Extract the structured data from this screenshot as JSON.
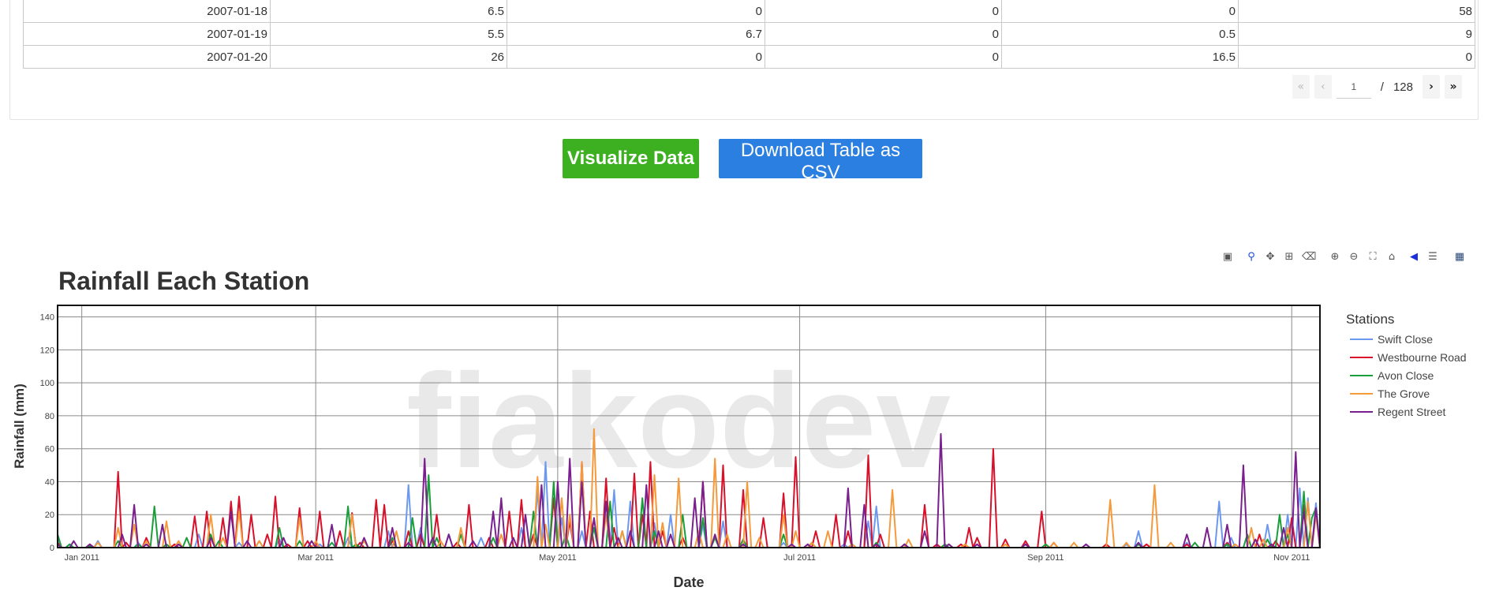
{
  "table": {
    "rows": [
      [
        "2007-01-18",
        "6.5",
        "0",
        "0",
        "0",
        "58"
      ],
      [
        "2007-01-19",
        "5.5",
        "6.7",
        "0",
        "0.5",
        "9"
      ],
      [
        "2007-01-20",
        "26",
        "0",
        "0",
        "16.5",
        "0"
      ]
    ]
  },
  "pager": {
    "first_icon": "double-chevron-left",
    "prev_icon": "chevron-left",
    "current_page": "1",
    "separator": "/",
    "total_pages": "128",
    "next_icon": "chevron-right",
    "last_icon": "double-chevron-right"
  },
  "buttons": {
    "visualize_label": "Visualize Data",
    "download_label": "Download Table as CSV",
    "visualize_color": "#3cb020",
    "download_color": "#2b7fe0"
  },
  "toolbar": {
    "icons": [
      "camera-icon",
      "zoom-icon",
      "pan-icon",
      "box-select-icon",
      "lasso-clear-icon",
      "zoom-in-icon",
      "zoom-out-icon",
      "autoscale-icon",
      "reset-axes-icon",
      "spike-lines-icon",
      "compare-hover-icon",
      "bar-chart-icon"
    ]
  },
  "chart_data": {
    "type": "line",
    "title": "Rainfall Each Station",
    "xlabel": "Date",
    "ylabel": "Rainfall (mm)",
    "watermark": "fiakodev",
    "ylim": [
      0,
      147
    ],
    "yticks": [
      0,
      20,
      40,
      60,
      80,
      100,
      120,
      140
    ],
    "xrange_days": [
      0,
      313
    ],
    "xticks": [
      {
        "label": "Jan 2011",
        "day": 6
      },
      {
        "label": "Mar 2011",
        "day": 64
      },
      {
        "label": "May 2011",
        "day": 124
      },
      {
        "label": "Jul 2011",
        "day": 184
      },
      {
        "label": "Sep 2011",
        "day": 245
      },
      {
        "label": "Nov 2011",
        "day": 306
      }
    ],
    "legend_title": "Stations",
    "legend_position": "right",
    "series": [
      {
        "name": "Swift Close",
        "color": "#6d98f0",
        "points": [
          [
            0,
            6
          ],
          [
            3,
            2
          ],
          [
            10,
            4
          ],
          [
            20,
            3
          ],
          [
            35,
            8
          ],
          [
            45,
            3
          ],
          [
            55,
            5
          ],
          [
            65,
            2
          ],
          [
            72,
            6
          ],
          [
            82,
            10
          ],
          [
            87,
            38
          ],
          [
            90,
            12
          ],
          [
            97,
            8
          ],
          [
            105,
            6
          ],
          [
            115,
            12
          ],
          [
            119,
            35
          ],
          [
            121,
            52
          ],
          [
            125,
            18
          ],
          [
            130,
            10
          ],
          [
            138,
            35
          ],
          [
            142,
            28
          ],
          [
            148,
            15
          ],
          [
            152,
            20
          ],
          [
            160,
            14
          ],
          [
            165,
            16
          ],
          [
            180,
            3
          ],
          [
            195,
            2
          ],
          [
            201,
            16
          ],
          [
            203,
            25
          ],
          [
            210,
            2
          ],
          [
            240,
            2
          ],
          [
            265,
            2
          ],
          [
            268,
            10
          ],
          [
            280,
            3
          ],
          [
            288,
            28
          ],
          [
            291,
            6
          ],
          [
            300,
            14
          ],
          [
            305,
            20
          ],
          [
            308,
            36
          ],
          [
            310,
            30
          ],
          [
            312,
            27
          ]
        ]
      },
      {
        "name": "Westbourne Road",
        "color": "#d8102a",
        "points": [
          [
            0,
            3
          ],
          [
            8,
            2
          ],
          [
            15,
            46
          ],
          [
            17,
            3
          ],
          [
            22,
            6
          ],
          [
            29,
            2
          ],
          [
            34,
            19
          ],
          [
            37,
            22
          ],
          [
            41,
            18
          ],
          [
            43,
            28
          ],
          [
            45,
            31
          ],
          [
            48,
            20
          ],
          [
            52,
            8
          ],
          [
            54,
            31
          ],
          [
            57,
            2
          ],
          [
            60,
            24
          ],
          [
            62,
            4
          ],
          [
            65,
            22
          ],
          [
            70,
            10
          ],
          [
            73,
            21
          ],
          [
            75,
            3
          ],
          [
            79,
            29
          ],
          [
            81,
            26
          ],
          [
            83,
            4
          ],
          [
            87,
            10
          ],
          [
            90,
            8
          ],
          [
            94,
            20
          ],
          [
            99,
            3
          ],
          [
            102,
            26
          ],
          [
            107,
            6
          ],
          [
            112,
            22
          ],
          [
            115,
            29
          ],
          [
            118,
            8
          ],
          [
            123,
            30
          ],
          [
            127,
            16
          ],
          [
            130,
            52
          ],
          [
            132,
            22
          ],
          [
            136,
            42
          ],
          [
            138,
            12
          ],
          [
            143,
            45
          ],
          [
            145,
            20
          ],
          [
            147,
            52
          ],
          [
            150,
            10
          ],
          [
            155,
            6
          ],
          [
            160,
            40
          ],
          [
            165,
            50
          ],
          [
            170,
            35
          ],
          [
            175,
            18
          ],
          [
            180,
            33
          ],
          [
            183,
            55
          ],
          [
            188,
            10
          ],
          [
            193,
            20
          ],
          [
            196,
            10
          ],
          [
            201,
            56
          ],
          [
            204,
            8
          ],
          [
            210,
            2
          ],
          [
            215,
            26
          ],
          [
            218,
            2
          ],
          [
            224,
            2
          ],
          [
            226,
            12
          ],
          [
            228,
            6
          ],
          [
            232,
            60
          ],
          [
            235,
            5
          ],
          [
            240,
            4
          ],
          [
            244,
            22
          ],
          [
            247,
            3
          ],
          [
            260,
            2
          ],
          [
            270,
            2
          ],
          [
            280,
            2
          ],
          [
            290,
            3
          ],
          [
            298,
            8
          ],
          [
            302,
            4
          ],
          [
            306,
            18
          ],
          [
            309,
            26
          ],
          [
            312,
            22
          ]
        ]
      },
      {
        "name": "Avon Close",
        "color": "#1a9e3a",
        "points": [
          [
            0,
            8
          ],
          [
            3,
            2
          ],
          [
            8,
            1
          ],
          [
            15,
            4
          ],
          [
            20,
            2
          ],
          [
            24,
            25
          ],
          [
            27,
            2
          ],
          [
            32,
            6
          ],
          [
            38,
            8
          ],
          [
            40,
            4
          ],
          [
            50,
            4
          ],
          [
            55,
            12
          ],
          [
            60,
            4
          ],
          [
            68,
            3
          ],
          [
            72,
            25
          ],
          [
            74,
            2
          ],
          [
            83,
            6
          ],
          [
            88,
            18
          ],
          [
            92,
            44
          ],
          [
            94,
            6
          ],
          [
            100,
            8
          ],
          [
            108,
            6
          ],
          [
            118,
            22
          ],
          [
            123,
            40
          ],
          [
            126,
            8
          ],
          [
            133,
            12
          ],
          [
            137,
            28
          ],
          [
            140,
            10
          ],
          [
            145,
            30
          ],
          [
            148,
            10
          ],
          [
            155,
            20
          ],
          [
            160,
            18
          ],
          [
            163,
            6
          ],
          [
            170,
            5
          ],
          [
            180,
            8
          ],
          [
            187,
            3
          ],
          [
            197,
            2
          ],
          [
            203,
            3
          ],
          [
            220,
            2
          ],
          [
            245,
            2
          ],
          [
            268,
            2
          ],
          [
            282,
            3
          ],
          [
            290,
            2
          ],
          [
            295,
            8
          ],
          [
            300,
            5
          ],
          [
            303,
            20
          ],
          [
            305,
            8
          ],
          [
            309,
            34
          ],
          [
            311,
            18
          ],
          [
            312,
            24
          ]
        ]
      },
      {
        "name": "The Grove",
        "color": "#f59a3c",
        "points": [
          [
            0,
            2
          ],
          [
            10,
            3
          ],
          [
            15,
            12
          ],
          [
            19,
            14
          ],
          [
            22,
            4
          ],
          [
            27,
            16
          ],
          [
            30,
            4
          ],
          [
            38,
            20
          ],
          [
            41,
            6
          ],
          [
            45,
            22
          ],
          [
            50,
            4
          ],
          [
            60,
            18
          ],
          [
            64,
            4
          ],
          [
            73,
            20
          ],
          [
            76,
            4
          ],
          [
            84,
            10
          ],
          [
            95,
            4
          ],
          [
            100,
            12
          ],
          [
            110,
            8
          ],
          [
            119,
            43
          ],
          [
            121,
            14
          ],
          [
            125,
            30
          ],
          [
            127,
            20
          ],
          [
            130,
            52
          ],
          [
            133,
            72
          ],
          [
            136,
            20
          ],
          [
            140,
            10
          ],
          [
            148,
            44
          ],
          [
            150,
            15
          ],
          [
            154,
            42
          ],
          [
            159,
            10
          ],
          [
            163,
            54
          ],
          [
            166,
            8
          ],
          [
            171,
            40
          ],
          [
            174,
            6
          ],
          [
            180,
            20
          ],
          [
            183,
            10
          ],
          [
            187,
            3
          ],
          [
            191,
            10
          ],
          [
            197,
            2
          ],
          [
            207,
            35
          ],
          [
            211,
            5
          ],
          [
            225,
            2
          ],
          [
            235,
            2
          ],
          [
            247,
            3
          ],
          [
            252,
            3
          ],
          [
            261,
            29
          ],
          [
            265,
            3
          ],
          [
            272,
            38
          ],
          [
            276,
            3
          ],
          [
            292,
            2
          ],
          [
            296,
            12
          ],
          [
            299,
            5
          ],
          [
            305,
            12
          ],
          [
            310,
            28
          ],
          [
            312,
            20
          ]
        ]
      },
      {
        "name": "Regent Street",
        "color": "#7a1f8e",
        "points": [
          [
            0,
            2
          ],
          [
            4,
            4
          ],
          [
            8,
            2
          ],
          [
            16,
            8
          ],
          [
            19,
            26
          ],
          [
            22,
            2
          ],
          [
            26,
            14
          ],
          [
            30,
            2
          ],
          [
            38,
            6
          ],
          [
            43,
            22
          ],
          [
            47,
            4
          ],
          [
            56,
            6
          ],
          [
            63,
            4
          ],
          [
            68,
            14
          ],
          [
            76,
            6
          ],
          [
            83,
            12
          ],
          [
            87,
            3
          ],
          [
            91,
            54
          ],
          [
            93,
            6
          ],
          [
            97,
            8
          ],
          [
            103,
            4
          ],
          [
            108,
            22
          ],
          [
            110,
            30
          ],
          [
            113,
            6
          ],
          [
            116,
            20
          ],
          [
            120,
            38
          ],
          [
            124,
            40
          ],
          [
            127,
            54
          ],
          [
            130,
            40
          ],
          [
            133,
            18
          ],
          [
            136,
            28
          ],
          [
            139,
            6
          ],
          [
            142,
            10
          ],
          [
            146,
            38
          ],
          [
            149,
            10
          ],
          [
            152,
            8
          ],
          [
            158,
            30
          ],
          [
            160,
            40
          ],
          [
            163,
            8
          ],
          [
            170,
            2
          ],
          [
            182,
            2
          ],
          [
            186,
            2
          ],
          [
            196,
            36
          ],
          [
            200,
            26
          ],
          [
            203,
            2
          ],
          [
            210,
            2
          ],
          [
            215,
            10
          ],
          [
            219,
            69
          ],
          [
            221,
            2
          ],
          [
            228,
            2
          ],
          [
            240,
            2
          ],
          [
            255,
            2
          ],
          [
            268,
            3
          ],
          [
            280,
            8
          ],
          [
            285,
            12
          ],
          [
            290,
            14
          ],
          [
            294,
            50
          ],
          [
            297,
            5
          ],
          [
            301,
            2
          ],
          [
            304,
            12
          ],
          [
            307,
            58
          ],
          [
            309,
            22
          ],
          [
            312,
            24
          ]
        ]
      }
    ]
  }
}
